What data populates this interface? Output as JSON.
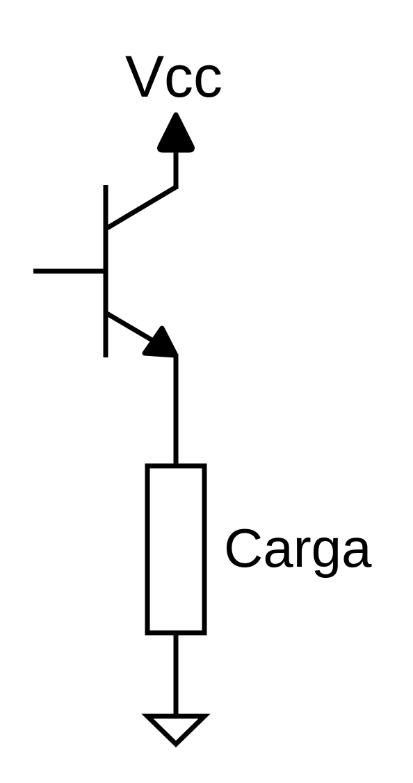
{
  "diagram": {
    "supply_label": "Vcc",
    "load_label": "Carga"
  },
  "colors": {
    "stroke": "#000000",
    "background": "#ffffff"
  }
}
